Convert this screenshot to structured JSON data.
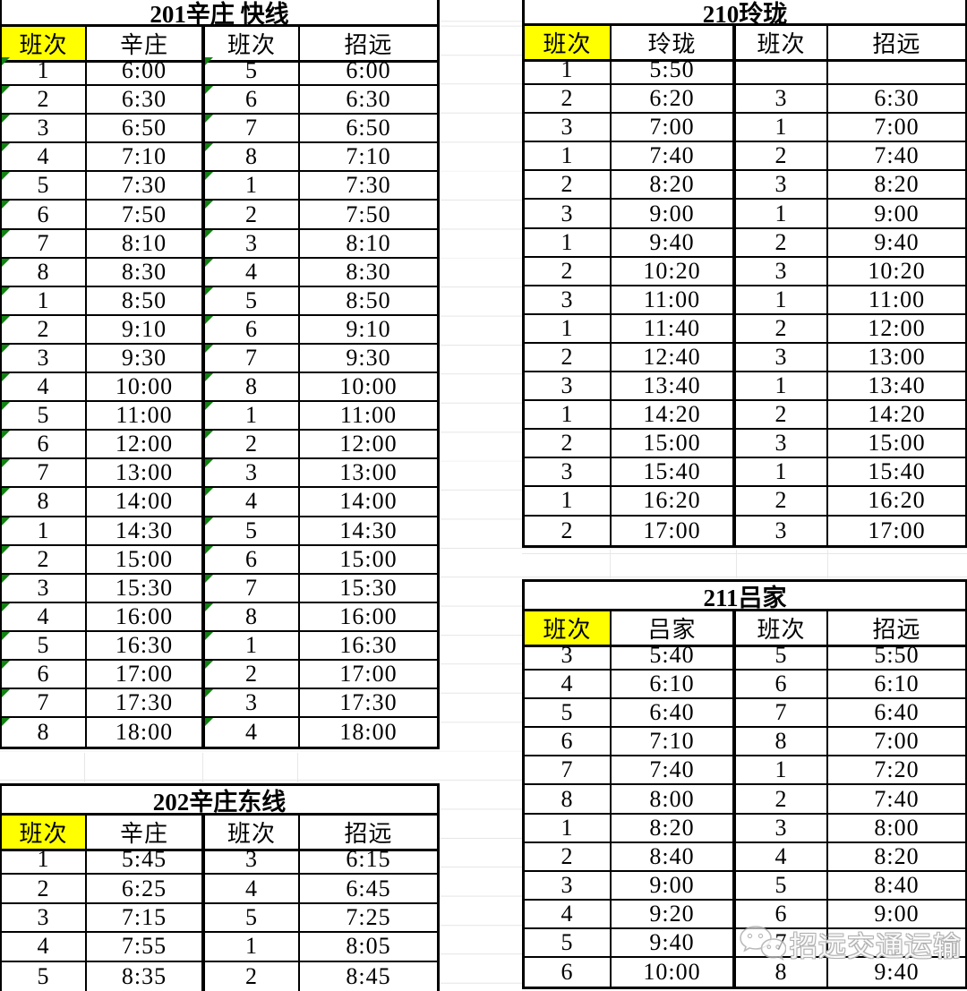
{
  "colors": {
    "header_highlight": "#ffff00",
    "table_border": "#000000",
    "gridline": "#e7e7e7",
    "error_triangle_green": "#128212",
    "watermark_gray": "#b0b0b0"
  },
  "tables": {
    "t201": {
      "title": "201辛庄 快线",
      "headers": [
        "班次",
        "辛庄",
        "班次",
        "招远"
      ],
      "green_triangles": true,
      "rows": [
        [
          "1",
          "6:00",
          "5",
          "6:00"
        ],
        [
          "2",
          "6:30",
          "6",
          "6:30"
        ],
        [
          "3",
          "6:50",
          "7",
          "6:50"
        ],
        [
          "4",
          "7:10",
          "8",
          "7:10"
        ],
        [
          "5",
          "7:30",
          "1",
          "7:30"
        ],
        [
          "6",
          "7:50",
          "2",
          "7:50"
        ],
        [
          "7",
          "8:10",
          "3",
          "8:10"
        ],
        [
          "8",
          "8:30",
          "4",
          "8:30"
        ],
        [
          "1",
          "8:50",
          "5",
          "8:50"
        ],
        [
          "2",
          "9:10",
          "6",
          "9:10"
        ],
        [
          "3",
          "9:30",
          "7",
          "9:30"
        ],
        [
          "4",
          "10:00",
          "8",
          "10:00"
        ],
        [
          "5",
          "11:00",
          "1",
          "11:00"
        ],
        [
          "6",
          "12:00",
          "2",
          "12:00"
        ],
        [
          "7",
          "13:00",
          "3",
          "13:00"
        ],
        [
          "8",
          "14:00",
          "4",
          "14:00"
        ],
        [
          "1",
          "14:30",
          "5",
          "14:30"
        ],
        [
          "2",
          "15:00",
          "6",
          "15:00"
        ],
        [
          "3",
          "15:30",
          "7",
          "15:30"
        ],
        [
          "4",
          "16:00",
          "8",
          "16:00"
        ],
        [
          "5",
          "16:30",
          "1",
          "16:30"
        ],
        [
          "6",
          "17:00",
          "2",
          "17:00"
        ],
        [
          "7",
          "17:30",
          "3",
          "17:30"
        ],
        [
          "8",
          "18:00",
          "4",
          "18:00"
        ]
      ]
    },
    "t210": {
      "title": "210玲珑",
      "headers": [
        "班次",
        "玲珑",
        "班次",
        "招远"
      ],
      "green_triangles": false,
      "rows": [
        [
          "1",
          "5:50",
          "",
          ""
        ],
        [
          "2",
          "6:20",
          "3",
          "6:30"
        ],
        [
          "3",
          "7:00",
          "1",
          "7:00"
        ],
        [
          "1",
          "7:40",
          "2",
          "7:40"
        ],
        [
          "2",
          "8:20",
          "3",
          "8:20"
        ],
        [
          "3",
          "9:00",
          "1",
          "9:00"
        ],
        [
          "1",
          "9:40",
          "2",
          "9:40"
        ],
        [
          "2",
          "10:20",
          "3",
          "10:20"
        ],
        [
          "3",
          "11:00",
          "1",
          "11:00"
        ],
        [
          "1",
          "11:40",
          "2",
          "12:00"
        ],
        [
          "2",
          "12:40",
          "3",
          "13:00"
        ],
        [
          "3",
          "13:40",
          "1",
          "13:40"
        ],
        [
          "1",
          "14:20",
          "2",
          "14:20"
        ],
        [
          "2",
          "15:00",
          "3",
          "15:00"
        ],
        [
          "3",
          "15:40",
          "1",
          "15:40"
        ],
        [
          "1",
          "16:20",
          "2",
          "16:20"
        ],
        [
          "2",
          "17:00",
          "3",
          "17:00"
        ]
      ]
    },
    "t202": {
      "title": "202辛庄东线",
      "headers": [
        "班次",
        "辛庄",
        "班次",
        "招远"
      ],
      "green_triangles": false,
      "rows": [
        [
          "1",
          "5:45",
          "3",
          "6:15"
        ],
        [
          "2",
          "6:25",
          "4",
          "6:45"
        ],
        [
          "3",
          "7:15",
          "5",
          "7:25"
        ],
        [
          "4",
          "7:55",
          "1",
          "8:05"
        ],
        [
          "5",
          "8:35",
          "2",
          "8:45"
        ]
      ]
    },
    "t211": {
      "title": "211吕家",
      "headers": [
        "班次",
        "吕家",
        "班次",
        "招远"
      ],
      "green_triangles": false,
      "rows": [
        [
          "3",
          "5:40",
          "5",
          "5:50"
        ],
        [
          "4",
          "6:10",
          "6",
          "6:10"
        ],
        [
          "5",
          "6:40",
          "7",
          "6:40"
        ],
        [
          "6",
          "7:10",
          "8",
          "7:00"
        ],
        [
          "7",
          "7:40",
          "1",
          "7:20"
        ],
        [
          "8",
          "8:00",
          "2",
          "7:40"
        ],
        [
          "1",
          "8:20",
          "3",
          "8:00"
        ],
        [
          "2",
          "8:40",
          "4",
          "8:20"
        ],
        [
          "3",
          "9:00",
          "5",
          "8:40"
        ],
        [
          "4",
          "9:20",
          "6",
          "9:00"
        ],
        [
          "5",
          "9:40",
          "7",
          ""
        ],
        [
          "6",
          "10:00",
          "8",
          "9:40"
        ]
      ]
    }
  },
  "watermark": {
    "text": "招远交通运输",
    "icon": "wechat-icon"
  }
}
